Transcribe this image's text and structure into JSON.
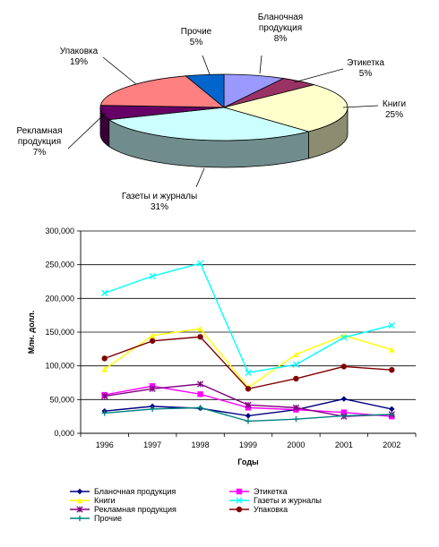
{
  "chart_data": [
    {
      "type": "pie",
      "title": "",
      "categories": [
        "Бланочная продукция",
        "Этикетка",
        "Книги",
        "Газеты и журналы",
        "Рекламная продукция",
        "Упаковка",
        "Прочие"
      ],
      "values": [
        8,
        5,
        25,
        31,
        7,
        19,
        5
      ],
      "value_labels": [
        "8%",
        "5%",
        "25%",
        "31%",
        "7%",
        "19%",
        "5%"
      ],
      "colors": [
        "#9999ff",
        "#993366",
        "#ffffcc",
        "#ccffff",
        "#660066",
        "#ff8080",
        "#0066cc"
      ],
      "style": "3d",
      "legend": "none"
    },
    {
      "type": "line",
      "title": "",
      "xlabel": "Годы",
      "ylabel": "Млн. долл.",
      "x": [
        1996,
        1997,
        1998,
        1999,
        2000,
        2001,
        2002
      ],
      "x_tick_labels": [
        "1996",
        "1997",
        "1998",
        "1999",
        "2000",
        "2001",
        "2002"
      ],
      "ylim": [
        0,
        300000
      ],
      "y_ticks": [
        0,
        50000,
        100000,
        150000,
        200000,
        250000,
        300000
      ],
      "y_tick_labels": [
        "0,000",
        "50,000",
        "100,000",
        "150,000",
        "200,000",
        "250,000",
        "300,000"
      ],
      "grid": "horizontal",
      "legend": "bottom",
      "series": [
        {
          "name": "Бланочная продукция",
          "color": "#000080",
          "marker": "diamond",
          "values": [
            33000,
            40000,
            37000,
            26000,
            35000,
            51000,
            36000
          ]
        },
        {
          "name": "Этикетка",
          "color": "#ff00ff",
          "marker": "square",
          "values": [
            57000,
            70000,
            58000,
            38000,
            35000,
            31000,
            25000
          ]
        },
        {
          "name": "Книги",
          "color": "#ffff00",
          "marker": "triangle",
          "values": [
            95000,
            145000,
            155000,
            68000,
            117000,
            145000,
            124000
          ]
        },
        {
          "name": "Газеты и журналы",
          "color": "#00ffff",
          "marker": "x",
          "values": [
            208000,
            233000,
            252000,
            90000,
            102000,
            142000,
            160000
          ]
        },
        {
          "name": "Рекламная продукция",
          "color": "#800080",
          "marker": "star",
          "values": [
            55000,
            66000,
            73000,
            42000,
            38000,
            25000,
            28000
          ]
        },
        {
          "name": "Упаковка",
          "color": "#800000",
          "marker": "circle",
          "values": [
            111000,
            137000,
            143000,
            66000,
            81000,
            99000,
            94000
          ]
        },
        {
          "name": "Прочие",
          "color": "#008080",
          "marker": "plus",
          "values": [
            30000,
            36000,
            38000,
            18000,
            21000,
            26000,
            28000
          ]
        }
      ]
    }
  ]
}
